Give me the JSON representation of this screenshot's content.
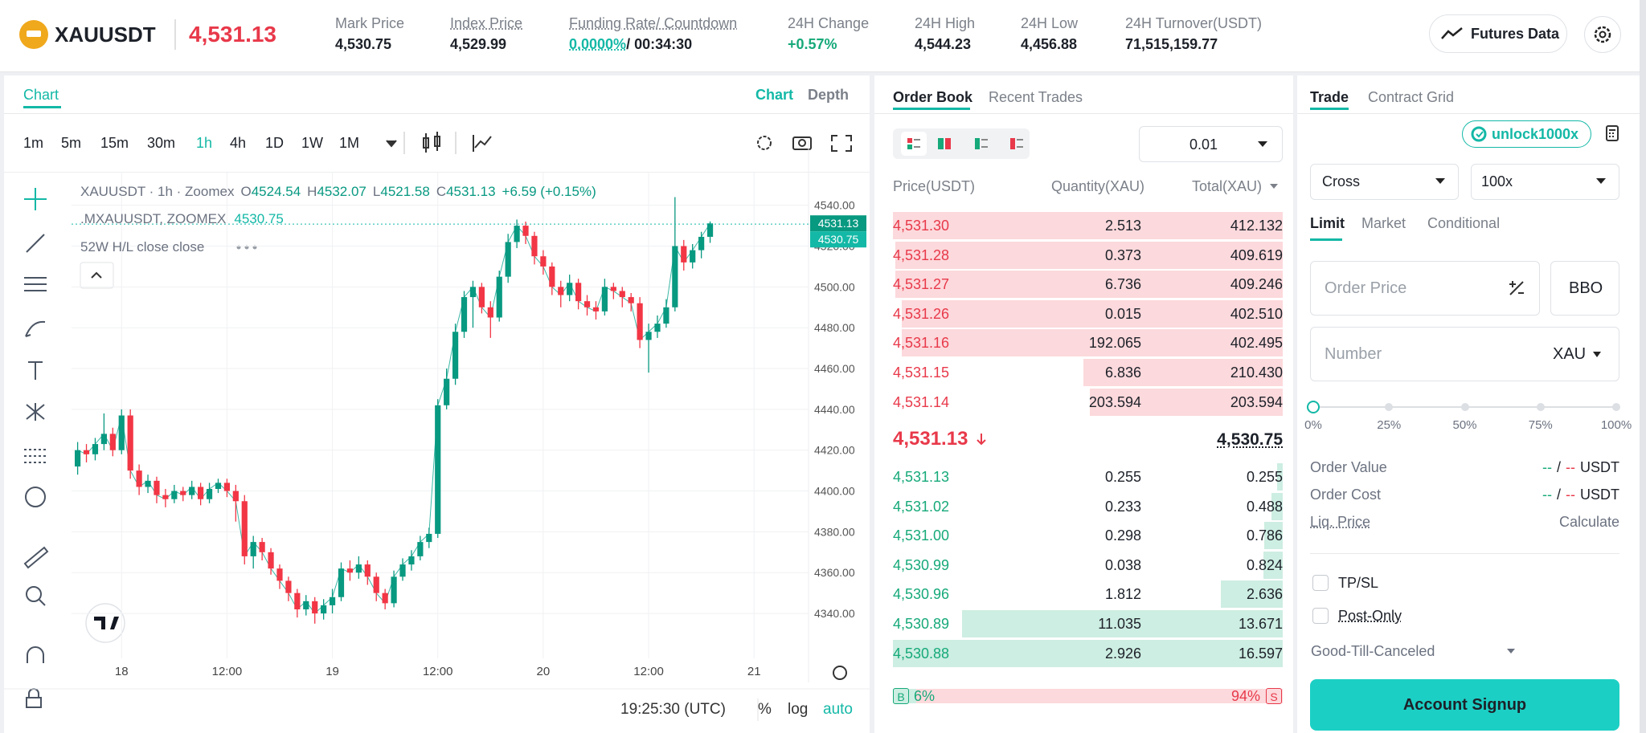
{
  "header": {
    "symbol": "XAUUSDT",
    "last_price": "4,531.13",
    "stats": [
      {
        "label": "Mark Price",
        "value": "4,530.75"
      },
      {
        "label": "Index Price",
        "value": "4,529.99",
        "underline": true
      },
      {
        "label": "Funding Rate/ Countdown",
        "value": "0.0000%",
        "value2": "/ 00:34:30",
        "underline": true,
        "value_color": "#14b8a6"
      },
      {
        "label": "24H Change",
        "value": "+0.57%",
        "value_color": "#16a97a"
      },
      {
        "label": "24H High",
        "value": "4,544.23"
      },
      {
        "label": "24H Low",
        "value": "4,456.88"
      },
      {
        "label": "24H Turnover(USDT)",
        "value": "71,515,159.77"
      }
    ],
    "futures_data": "Futures Data"
  },
  "chart_panel": {
    "tab": "Chart",
    "view_tabs": [
      "Chart",
      "Depth"
    ],
    "intervals": [
      "1m",
      "5m",
      "15m",
      "30m",
      "1h",
      "4h",
      "1D",
      "1W",
      "1M"
    ],
    "active_interval": 4
  },
  "chart": {
    "type": "candlestick",
    "up_color": "#089981",
    "down_color": "#f23645",
    "legend": {
      "title": "XAUUSDT · 1h · Zoomex",
      "ohlc_keys": [
        "O",
        "H",
        "L",
        "C"
      ],
      "change": "+6.59 (+0.15%)",
      "mark": ".MXAUUSDT, ZOOMEX",
      "indicator": "52W H/L close close"
    },
    "candles": [
      [
        4412,
        4424,
        4408,
        4420
      ],
      [
        4420,
        4423,
        4414,
        4418
      ],
      [
        4418,
        4426,
        4415,
        4423
      ],
      [
        4423,
        4438,
        4420,
        4428
      ],
      [
        4428,
        4431,
        4417,
        4420
      ],
      [
        4420,
        4440,
        4418,
        4437
      ],
      [
        4437,
        4440,
        4406,
        4410
      ],
      [
        4410,
        4413,
        4398,
        4402
      ],
      [
        4402,
        4408,
        4399,
        4405
      ],
      [
        4405,
        4407,
        4394,
        4398
      ],
      [
        4398,
        4401,
        4392,
        4396
      ],
      [
        4396,
        4403,
        4394,
        4400
      ],
      [
        4400,
        4402,
        4395,
        4398
      ],
      [
        4398,
        4405,
        4396,
        4402
      ],
      [
        4402,
        4404,
        4393,
        4396
      ],
      [
        4396,
        4404,
        4394,
        4401
      ],
      [
        4401,
        4406,
        4399,
        4404
      ],
      [
        4404,
        4406,
        4397,
        4400
      ],
      [
        4400,
        4403,
        4385,
        4395
      ],
      [
        4395,
        4398,
        4364,
        4368
      ],
      [
        4368,
        4378,
        4362,
        4375
      ],
      [
        4375,
        4377,
        4366,
        4370
      ],
      [
        4370,
        4372,
        4359,
        4362
      ],
      [
        4362,
        4364,
        4352,
        4356
      ],
      [
        4356,
        4358,
        4346,
        4350
      ],
      [
        4350,
        4352,
        4338,
        4342
      ],
      [
        4342,
        4349,
        4339,
        4346
      ],
      [
        4346,
        4348,
        4335,
        4340
      ],
      [
        4340,
        4347,
        4337,
        4344
      ],
      [
        4344,
        4352,
        4340,
        4348
      ],
      [
        4348,
        4365,
        4346,
        4362
      ],
      [
        4362,
        4366,
        4356,
        4360
      ],
      [
        4360,
        4368,
        4357,
        4364
      ],
      [
        4364,
        4366,
        4354,
        4358
      ],
      [
        4358,
        4360,
        4346,
        4350
      ],
      [
        4350,
        4352,
        4342,
        4345
      ],
      [
        4345,
        4361,
        4343,
        4358
      ],
      [
        4358,
        4367,
        4356,
        4364
      ],
      [
        4364,
        4371,
        4361,
        4368
      ],
      [
        4368,
        4378,
        4366,
        4375
      ],
      [
        4375,
        4382,
        4372,
        4379
      ],
      [
        4379,
        4445,
        4377,
        4442
      ],
      [
        4442,
        4460,
        4440,
        4455
      ],
      [
        4455,
        4482,
        4452,
        4478
      ],
      [
        4478,
        4498,
        4475,
        4495
      ],
      [
        4495,
        4503,
        4480,
        4500
      ],
      [
        4500,
        4502,
        4487,
        4490
      ],
      [
        4490,
        4493,
        4475,
        4485
      ],
      [
        4485,
        4508,
        4483,
        4505
      ],
      [
        4505,
        4526,
        4502,
        4522
      ],
      [
        4522,
        4533,
        4519,
        4530
      ],
      [
        4530,
        4532,
        4521,
        4525
      ],
      [
        4525,
        4527,
        4511,
        4515
      ],
      [
        4515,
        4518,
        4506,
        4510
      ],
      [
        4510,
        4512,
        4496,
        4500
      ],
      [
        4500,
        4503,
        4490,
        4496
      ],
      [
        4496,
        4506,
        4493,
        4502
      ],
      [
        4502,
        4504,
        4489,
        4493
      ],
      [
        4493,
        4496,
        4486,
        4490
      ],
      [
        4490,
        4493,
        4484,
        4488
      ],
      [
        4488,
        4504,
        4486,
        4500
      ],
      [
        4500,
        4502,
        4494,
        4498
      ],
      [
        4498,
        4500,
        4490,
        4495
      ],
      [
        4495,
        4497,
        4488,
        4492
      ],
      [
        4492,
        4495,
        4470,
        4474
      ],
      [
        4474,
        4482,
        4458,
        4478
      ],
      [
        4478,
        4486,
        4475,
        4482
      ],
      [
        4482,
        4494,
        4480,
        4490
      ],
      [
        4490,
        4544,
        4488,
        4520
      ],
      [
        4520,
        4523,
        4508,
        4512
      ],
      [
        4512,
        4521,
        4509,
        4518
      ],
      [
        4518,
        4527,
        4514,
        4524.54
      ],
      [
        4524.54,
        4532.07,
        4521.58,
        4531.13
      ]
    ],
    "ylim": [
      4318,
      4556
    ],
    "yticks": [
      {
        "value": 4340,
        "label": "4340.00"
      },
      {
        "value": 4360,
        "label": "4360.00"
      },
      {
        "value": 4380,
        "label": "4380.00"
      },
      {
        "value": 4400,
        "label": "4400.00"
      },
      {
        "value": 4420,
        "label": "4420.00"
      },
      {
        "value": 4440,
        "label": "4440.00"
      },
      {
        "value": 4460,
        "label": "4460.00"
      },
      {
        "value": 4480,
        "label": "4480.00"
      },
      {
        "value": 4500,
        "label": "4500.00"
      },
      {
        "value": 4520,
        "label": "4520.00"
      },
      {
        "value": 4540,
        "label": "4540.00"
      }
    ],
    "grid": true,
    "last_price": 4531.13,
    "mark_price": 4530.75,
    "time_labels": [
      "18",
      "12:00",
      "19",
      "12:00",
      "20",
      "12:00",
      "21"
    ],
    "time": "19:25:30 (UTC)",
    "scale_options": [
      "%",
      "log",
      "auto"
    ]
  },
  "order_book": {
    "tabs": [
      "Order Book",
      "Recent Trades"
    ],
    "tick_size": "0.01",
    "columns": [
      "Price(USDT)",
      "Quantity(XAU)",
      "Total(XAU)"
    ],
    "asks": [
      [
        "4,531.30",
        "2.513",
        "412.132"
      ],
      [
        "4,531.28",
        "0.373",
        "409.619"
      ],
      [
        "4,531.27",
        "6.736",
        "409.246"
      ],
      [
        "4,531.26",
        "0.015",
        "402.510"
      ],
      [
        "4,531.16",
        "192.065",
        "402.495"
      ],
      [
        "4,531.15",
        "6.836",
        "210.430"
      ],
      [
        "4,531.14",
        "203.594",
        "203.594"
      ]
    ],
    "last_price": "4,531.13",
    "mark_price": "4,530.75",
    "bids": [
      [
        "4,531.13",
        "0.255",
        "0.255"
      ],
      [
        "4,531.02",
        "0.233",
        "0.488"
      ],
      [
        "4,531.00",
        "0.298",
        "0.786"
      ],
      [
        "4,530.99",
        "0.038",
        "0.824"
      ],
      [
        "4,530.96",
        "1.812",
        "2.636"
      ],
      [
        "4,530.89",
        "11.035",
        "13.671"
      ],
      [
        "4,530.88",
        "2.926",
        "16.597"
      ]
    ],
    "buy_ratio": {
      "label": "B",
      "value": "6%"
    },
    "sell_ratio": {
      "label": "S",
      "value": "94%"
    }
  },
  "trade": {
    "tabs": [
      "Trade",
      "Contract Grid"
    ],
    "promo": "unlock1000x",
    "margin_mode": "Cross",
    "leverage": "100x",
    "order_types": [
      "Limit",
      "Market",
      "Conditional"
    ],
    "price_placeholder": "Order Price",
    "bbo": "BBO",
    "number_placeholder": "Number",
    "unit": "XAU",
    "slider": [
      "0%",
      "25%",
      "50%",
      "75%",
      "100%"
    ],
    "info": [
      {
        "label": "Order Value",
        "parts": [
          "--",
          "/",
          "--",
          "USDT"
        ]
      },
      {
        "label": "Order Cost",
        "parts": [
          "--",
          "/",
          "--",
          "USDT"
        ]
      },
      {
        "label": "Liq. Price",
        "value": "Calculate"
      }
    ],
    "options": [
      "TP/SL",
      "Post-Only"
    ],
    "time_in_force": "Good-Till-Canceled",
    "signup": "Account Signup"
  }
}
